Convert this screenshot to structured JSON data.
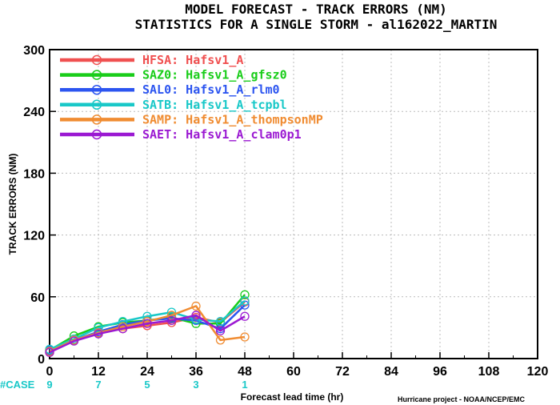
{
  "chart_data": {
    "type": "line",
    "title": "MODEL FORECAST - TRACK ERRORS (NM)",
    "subtitle": "STATISTICS FOR A SINGLE STORM - al162022_MARTIN",
    "xlabel": "Forecast lead time (hr)",
    "ylabel": "TRACK ERRORS (NM)",
    "xlim": [
      0,
      120
    ],
    "ylim": [
      0,
      300
    ],
    "x_ticks": [
      "0",
      "12",
      "24",
      "36",
      "48",
      "60",
      "72",
      "84",
      "96",
      "108",
      "120"
    ],
    "y_ticks": [
      "0",
      "60",
      "120",
      "180",
      "240",
      "300"
    ],
    "grid": true,
    "legend_position": "top-left",
    "x": [
      0,
      6,
      12,
      18,
      24,
      30,
      36,
      42,
      48
    ],
    "series": [
      {
        "name": "HFSA:  Hafsv1_A",
        "color": "#f05050",
        "values": [
          6,
          18,
          25,
          29,
          32,
          35,
          40,
          35,
          55
        ]
      },
      {
        "name": "SAZ0:  Hafsv1_A_gfsz0",
        "color": "#19cd19",
        "values": [
          8,
          22,
          31,
          35,
          37,
          40,
          34,
          34,
          62
        ]
      },
      {
        "name": "SAL0:  Hafsv1_A_rlm0",
        "color": "#2c55f0",
        "values": [
          8,
          18,
          26,
          33,
          37,
          39,
          37,
          29,
          52
        ]
      },
      {
        "name": "SATB:  Hafsv1_A_tcpbl",
        "color": "#19c8c8",
        "values": [
          9,
          19,
          30,
          36,
          41,
          45,
          38,
          36,
          56
        ]
      },
      {
        "name": "SAMP:  Hafsv1_A_thompsonMP",
        "color": "#f08c32",
        "values": [
          7,
          18,
          25,
          31,
          36,
          42,
          51,
          18,
          21
        ]
      },
      {
        "name": "SAET:  Hafsv1_A_clam0p1",
        "color": "#9b19d2",
        "values": [
          6,
          17,
          24,
          29,
          34,
          37,
          42,
          27,
          41
        ]
      }
    ],
    "case_label": "#CASE",
    "case_color": "#19c8c8",
    "case_counts": [
      {
        "x": 0,
        "label": "9"
      },
      {
        "x": 12,
        "label": "7"
      },
      {
        "x": 24,
        "label": "5"
      },
      {
        "x": 36,
        "label": "3"
      },
      {
        "x": 48,
        "label": "1"
      }
    ],
    "credit": "Hurricane project - NOAA/NCEP/EMC"
  }
}
